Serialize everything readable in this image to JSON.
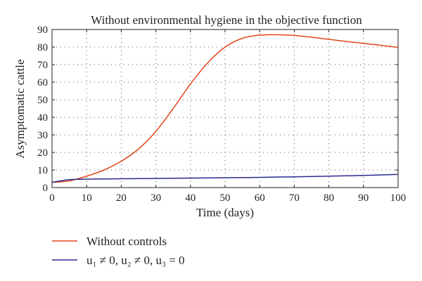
{
  "chart_data": {
    "type": "line",
    "title": "Without environmental hygiene in the objective function",
    "xlabel": "Time (days)",
    "ylabel": "Asymptomatic cattle",
    "xlim": [
      0,
      100
    ],
    "ylim": [
      0,
      90
    ],
    "xticks": [
      0,
      10,
      20,
      30,
      40,
      50,
      60,
      70,
      80,
      90,
      100
    ],
    "yticks": [
      0,
      10,
      20,
      30,
      40,
      50,
      60,
      70,
      80,
      90
    ],
    "grid": true,
    "legend_position": "bottom-left, below plot",
    "x": [
      0,
      5,
      10,
      15,
      20,
      25,
      30,
      35,
      40,
      45,
      50,
      55,
      60,
      65,
      70,
      75,
      80,
      85,
      90,
      95,
      100
    ],
    "series": [
      {
        "name": "Without controls",
        "color": "#e2461b",
        "values": [
          3,
          3.8,
          6.5,
          10,
          15,
          22,
          32,
          45,
          59,
          71,
          80,
          85,
          86.8,
          87,
          86.6,
          85.6,
          84.4,
          83.2,
          82.1,
          81,
          79.8
        ]
      },
      {
        "name": "u₁ ≠ 0, u₂ ≠ 0, u₃ = 0",
        "color": "#2a2b8e",
        "values": [
          3,
          4.5,
          4.8,
          4.9,
          5.0,
          5.1,
          5.2,
          5.3,
          5.4,
          5.5,
          5.6,
          5.7,
          5.8,
          6.0,
          6.1,
          6.3,
          6.5,
          6.7,
          6.9,
          7.2,
          7.5
        ]
      }
    ]
  }
}
